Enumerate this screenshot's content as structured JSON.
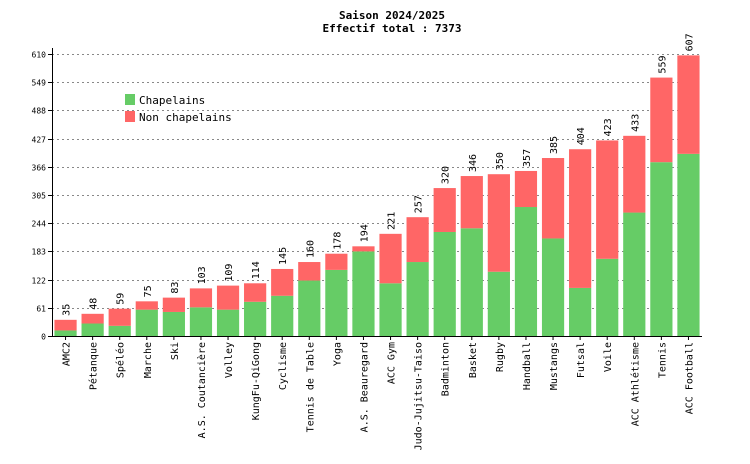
{
  "chart_data": {
    "type": "bar",
    "stacked": true,
    "title": "Saison 2024/2025",
    "subtitle": "Effectif total : 7373",
    "categories": [
      "AMC2",
      "Pétanque",
      "Spéléo",
      "Marche",
      "Ski",
      "A.S. Coutancière",
      "Volley",
      "KungFu-QiGong",
      "Cyclisme",
      "Tennis de Table",
      "Yoga",
      "A.S. Beauregard",
      "ACC Gym",
      "Judo-Jujitsu-Taiso",
      "Badminton",
      "Basket",
      "Rugby",
      "Handball",
      "Mustangs",
      "Futsal",
      "Voile",
      "ACC Athlétisme",
      "Tennis",
      "ACC Football"
    ],
    "series": [
      {
        "name": "Chapelains",
        "color": "#66cc66",
        "values": [
          12,
          27,
          22,
          57,
          52,
          62,
          57,
          74,
          87,
          120,
          143,
          183,
          114,
          160,
          225,
          233,
          139,
          279,
          211,
          104,
          167,
          267,
          376,
          394
        ]
      },
      {
        "name": "Non chapelains",
        "color": "#ff6666",
        "values": [
          23,
          21,
          37,
          18,
          31,
          41,
          52,
          40,
          58,
          40,
          35,
          11,
          107,
          97,
          95,
          113,
          211,
          78,
          174,
          300,
          256,
          166,
          183,
          213
        ]
      }
    ],
    "totals": [
      35,
      48,
      59,
      75,
      83,
      103,
      109,
      114,
      145,
      160,
      178,
      194,
      221,
      257,
      320,
      346,
      350,
      357,
      385,
      404,
      423,
      433,
      559,
      607
    ],
    "yticks": [
      0,
      61,
      122,
      183,
      244,
      305,
      366,
      427,
      488,
      549,
      610
    ],
    "ylim": [
      0,
      610
    ],
    "grid": true,
    "legend_position": "top-left"
  }
}
